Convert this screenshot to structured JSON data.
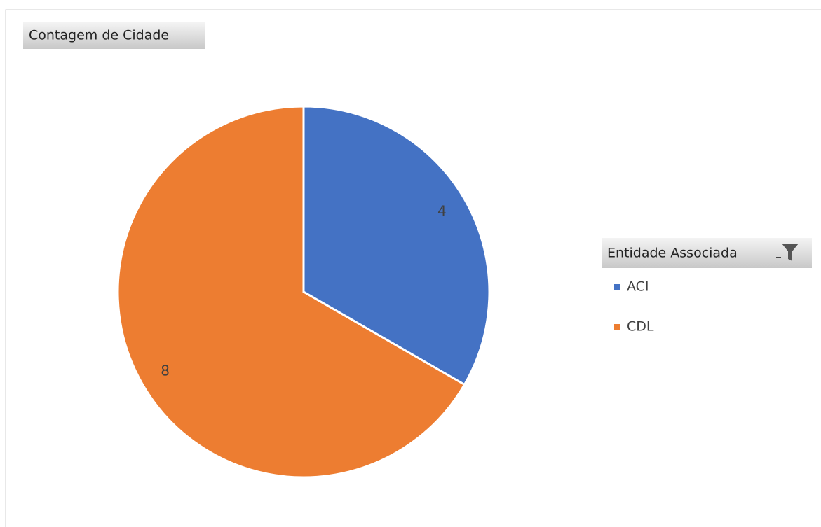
{
  "chart_data": {
    "type": "pie",
    "value_field": "Contagem de Cidade",
    "legend_title": "Entidade Associada",
    "categories": [
      "ACI",
      "CDL"
    ],
    "values": [
      4,
      8
    ],
    "series": [
      {
        "name": "ACI",
        "color": "#4472c4"
      },
      {
        "name": "CDL",
        "color": "#ed7d31"
      }
    ],
    "legend": "right"
  }
}
